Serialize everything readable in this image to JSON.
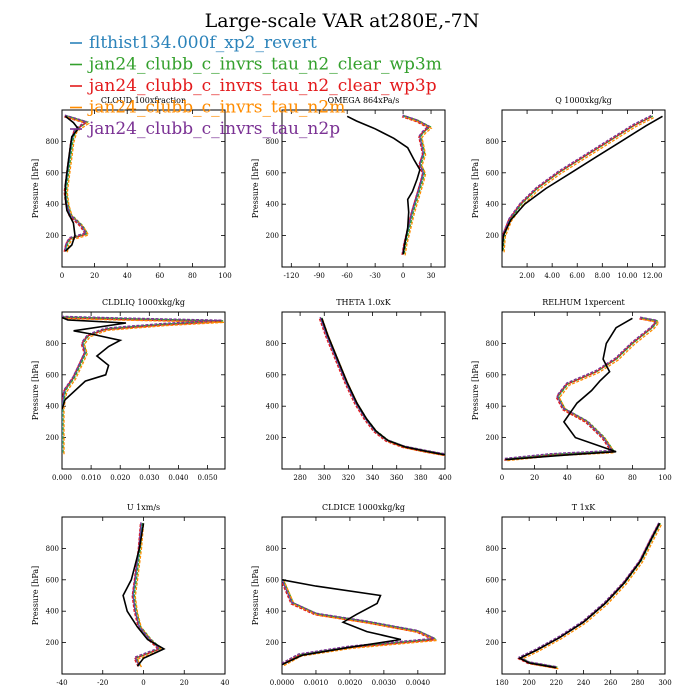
{
  "title": "Large-scale VAR at280E,-7N",
  "legend": [
    {
      "name": "flthist134.000f_xp2_revert",
      "color": "#2b83ba"
    },
    {
      "name": "jan24_clubb_c_invrs_tau_n2_clear_wp3m",
      "color": "#33a02c"
    },
    {
      "name": "jan24_clubb_c_invrs_tau_n2_clear_wp3p",
      "color": "#e31a1c"
    },
    {
      "name": "jan24_clubb_c_invrs_tau_n2m",
      "color": "#ff8c00"
    },
    {
      "name": "jan24_clubb_c_invrs_tau_n2p",
      "color": "#7b3294"
    }
  ],
  "control_color": "#000000",
  "chart_data": [
    {
      "type": "line",
      "title": "CLOUD 100xfraction",
      "ylabel": "Pressure [hPa]",
      "xlim": [
        0,
        100
      ],
      "ylim": [
        1000,
        0
      ],
      "y_inverted": true,
      "xticks": [
        "0",
        "20",
        "40",
        "60",
        "80",
        "100"
      ],
      "xtick_values": [
        0,
        20,
        40,
        60,
        80,
        100
      ],
      "yticks": [
        "200",
        "400",
        "600",
        "800"
      ],
      "ytick_values": [
        200,
        400,
        600,
        800
      ],
      "series": [
        {
          "role": "ensemble",
          "x": [
            2,
            3,
            5,
            15,
            12,
            5,
            3,
            2,
            3,
            4,
            5,
            6,
            8,
            15,
            2
          ],
          "y": [
            100,
            150,
            180,
            210,
            260,
            330,
            400,
            480,
            560,
            640,
            720,
            800,
            870,
            920,
            960
          ]
        },
        {
          "role": "control",
          "x": [
            2,
            6,
            8,
            7,
            3,
            2,
            2,
            3,
            4,
            5,
            6,
            10,
            7,
            2
          ],
          "y": [
            100,
            140,
            200,
            280,
            360,
            440,
            520,
            600,
            680,
            760,
            830,
            880,
            920,
            960
          ]
        }
      ]
    },
    {
      "type": "line",
      "title": "OMEGA 864xPa/s",
      "ylabel": "Pressure [hPa]",
      "xlim": [
        -130,
        45
      ],
      "ylim": [
        1000,
        0
      ],
      "y_inverted": true,
      "xticks": [
        "-120",
        "-90",
        "-60",
        "-30",
        "0",
        "30"
      ],
      "xtick_values": [
        -120,
        -90,
        -60,
        -30,
        0,
        30
      ],
      "yticks": [
        "200",
        "400",
        "600",
        "800"
      ],
      "ytick_values": [
        200,
        400,
        600,
        800
      ],
      "series": [
        {
          "role": "ensemble",
          "x": [
            0,
            2,
            6,
            10,
            15,
            20,
            22,
            18,
            22,
            20,
            18,
            22,
            28,
            15,
            0
          ],
          "y": [
            80,
            150,
            250,
            350,
            450,
            550,
            600,
            650,
            720,
            780,
            830,
            860,
            890,
            930,
            960
          ]
        },
        {
          "role": "control",
          "x": [
            0,
            2,
            5,
            6,
            5,
            10,
            15,
            18,
            12,
            5,
            -10,
            -30,
            -50,
            -60
          ],
          "y": [
            80,
            150,
            250,
            350,
            430,
            480,
            560,
            620,
            680,
            760,
            820,
            880,
            930,
            960
          ]
        }
      ]
    },
    {
      "type": "line",
      "title": "Q 1000xkg/kg",
      "ylabel": "Pressure [hPa]",
      "xlim": [
        0,
        13
      ],
      "ylim": [
        1000,
        0
      ],
      "y_inverted": true,
      "xticks": [
        "2.00",
        "4.00",
        "6.00",
        "8.00",
        "10.00",
        "12.00"
      ],
      "xtick_values": [
        2,
        4,
        6,
        8,
        10,
        12
      ],
      "yticks": [
        "200",
        "400",
        "600",
        "800"
      ],
      "ytick_values": [
        200,
        400,
        600,
        800
      ],
      "series": [
        {
          "role": "ensemble",
          "x": [
            0.01,
            0.1,
            0.6,
            1.5,
            2.8,
            4.5,
            6.5,
            8.5,
            10.5,
            12.0
          ],
          "y": [
            100,
            200,
            300,
            400,
            500,
            600,
            700,
            800,
            900,
            960
          ]
        },
        {
          "role": "control",
          "x": [
            0.01,
            0.1,
            0.7,
            1.8,
            3.5,
            5.5,
            7.5,
            9.5,
            11.5,
            12.8
          ],
          "y": [
            100,
            200,
            300,
            400,
            500,
            600,
            700,
            800,
            900,
            960
          ]
        }
      ]
    },
    {
      "type": "line",
      "title": "CLDLIQ 1000xkg/kg",
      "ylabel": "Pressure [hPa]",
      "xlim": [
        0,
        0.056
      ],
      "ylim": [
        1000,
        0
      ],
      "y_inverted": true,
      "xticks": [
        "0.000",
        "0.010",
        "0.020",
        "0.030",
        "0.040",
        "0.050"
      ],
      "xtick_values": [
        0,
        0.01,
        0.02,
        0.03,
        0.04,
        0.05
      ],
      "yticks": [
        "200",
        "400",
        "600",
        "800"
      ],
      "ytick_values": [
        200,
        400,
        600,
        800
      ],
      "series": [
        {
          "role": "ensemble",
          "x": [
            0,
            0,
            0.001,
            0.004,
            0.006,
            0.008,
            0.007,
            0.009,
            0.015,
            0.035,
            0.055,
            0.02,
            0
          ],
          "y": [
            100,
            400,
            500,
            580,
            660,
            740,
            800,
            850,
            890,
            920,
            940,
            955,
            965
          ]
        },
        {
          "role": "control",
          "x": [
            0,
            0.001,
            0.008,
            0.015,
            0.016,
            0.012,
            0.016,
            0.02,
            0.01,
            0.004,
            0.022,
            0.002,
            0
          ],
          "y": [
            380,
            440,
            560,
            600,
            660,
            720,
            780,
            820,
            860,
            880,
            930,
            950,
            965
          ]
        }
      ]
    },
    {
      "type": "line",
      "title": "THETA 1.0xK",
      "ylabel": "",
      "xlim": [
        265,
        400
      ],
      "ylim": [
        1000,
        0
      ],
      "y_inverted": true,
      "xticks": [
        "280",
        "300",
        "320",
        "340",
        "360",
        "380",
        "400"
      ],
      "xtick_values": [
        280,
        300,
        320,
        340,
        360,
        380,
        400
      ],
      "yticks": [
        "200",
        "400",
        "600",
        "800"
      ],
      "ytick_values": [
        200,
        400,
        600,
        800
      ],
      "series": [
        {
          "role": "ensemble",
          "x": [
            297,
            302,
            310,
            318,
            326,
            334,
            342,
            352,
            366,
            385,
            400
          ],
          "y": [
            960,
            850,
            700,
            550,
            420,
            320,
            240,
            180,
            140,
            110,
            90
          ]
        },
        {
          "role": "control",
          "x": [
            298,
            303,
            311,
            319,
            327,
            335,
            343,
            353,
            367,
            386,
            400
          ],
          "y": [
            960,
            850,
            700,
            550,
            420,
            320,
            240,
            180,
            140,
            110,
            90
          ]
        }
      ]
    },
    {
      "type": "line",
      "title": "RELHUM 1xpercent",
      "ylabel": "Pressure [hPa]",
      "xlim": [
        0,
        100
      ],
      "ylim": [
        1000,
        0
      ],
      "y_inverted": true,
      "xticks": [
        "0",
        "20",
        "40",
        "60",
        "80",
        "100"
      ],
      "xtick_values": [
        0,
        20,
        40,
        60,
        80,
        100
      ],
      "yticks": [
        "200",
        "400",
        "600",
        "800"
      ],
      "ytick_values": [
        200,
        400,
        600,
        800
      ],
      "series": [
        {
          "role": "ensemble",
          "x": [
            2,
            30,
            68,
            62,
            52,
            38,
            34,
            40,
            58,
            70,
            80,
            92,
            95,
            85
          ],
          "y": [
            60,
            90,
            110,
            200,
            300,
            380,
            460,
            540,
            620,
            700,
            800,
            900,
            940,
            960
          ]
        },
        {
          "role": "control",
          "x": [
            2,
            40,
            70,
            45,
            38,
            46,
            55,
            60,
            66,
            62,
            64,
            70,
            80
          ],
          "y": [
            60,
            90,
            110,
            200,
            300,
            420,
            500,
            560,
            620,
            700,
            800,
            900,
            960
          ]
        }
      ]
    },
    {
      "type": "line",
      "title": "U 1xm/s",
      "ylabel": "Pressure [hPa]",
      "xlim": [
        -40,
        40
      ],
      "ylim": [
        1000,
        0
      ],
      "y_inverted": true,
      "xticks": [
        "-40",
        "-20",
        "0",
        "20",
        "40"
      ],
      "xtick_values": [
        -40,
        -20,
        0,
        20,
        40
      ],
      "yticks": [
        "200",
        "400",
        "600",
        "800"
      ],
      "ytick_values": [
        200,
        400,
        600,
        800
      ],
      "series": [
        {
          "role": "ensemble",
          "x": [
            -2,
            -4,
            2,
            8,
            3,
            -2,
            -4,
            -5,
            -4,
            -3,
            -2,
            -1
          ],
          "y": [
            50,
            100,
            130,
            160,
            220,
            300,
            400,
            500,
            600,
            700,
            800,
            960
          ]
        },
        {
          "role": "control",
          "x": [
            -3,
            0,
            5,
            10,
            2,
            -3,
            -8,
            -10,
            -6,
            -4,
            -2,
            0
          ],
          "y": [
            50,
            100,
            130,
            160,
            220,
            300,
            400,
            500,
            600,
            700,
            800,
            960
          ]
        }
      ]
    },
    {
      "type": "line",
      "title": "CLDICE 1000xkg/kg",
      "ylabel": "Pressure [hPa]",
      "xlim": [
        0,
        0.0048
      ],
      "ylim": [
        1000,
        0
      ],
      "y_inverted": true,
      "xticks": [
        "0.0000",
        "0.0010",
        "0.0020",
        "0.0030",
        "0.0040"
      ],
      "xtick_values": [
        0,
        0.001,
        0.002,
        0.003,
        0.004
      ],
      "yticks": [
        "200",
        "400",
        "600",
        "800"
      ],
      "ytick_values": [
        200,
        400,
        600,
        800
      ],
      "series": [
        {
          "role": "ensemble",
          "x": [
            0,
            0.0005,
            0.002,
            0.0045,
            0.004,
            0.0025,
            0.001,
            0.0003,
            0.0001,
            0
          ],
          "y": [
            60,
            120,
            170,
            220,
            270,
            330,
            380,
            450,
            550,
            600
          ]
        },
        {
          "role": "control",
          "x": [
            0,
            0.0006,
            0.002,
            0.0035,
            0.0025,
            0.0018,
            0.0022,
            0.0028,
            0.0029,
            0.001,
            0
          ],
          "y": [
            60,
            120,
            170,
            220,
            270,
            330,
            380,
            450,
            500,
            560,
            600
          ]
        }
      ]
    },
    {
      "type": "line",
      "title": "T 1xK",
      "ylabel": "",
      "xlim": [
        180,
        300
      ],
      "ylim": [
        1000,
        0
      ],
      "y_inverted": true,
      "xticks": [
        "180",
        "200",
        "220",
        "240",
        "260",
        "280",
        "300"
      ],
      "xtick_values": [
        180,
        200,
        220,
        240,
        260,
        280,
        300
      ],
      "yticks": [
        "200",
        "400",
        "600",
        "800"
      ],
      "ytick_values": [
        200,
        400,
        600,
        800
      ],
      "series": [
        {
          "role": "ensemble",
          "x": [
            220,
            200,
            193,
            205,
            222,
            240,
            256,
            270,
            282,
            290,
            296
          ],
          "y": [
            40,
            70,
            100,
            150,
            230,
            330,
            450,
            580,
            720,
            860,
            960
          ]
        },
        {
          "role": "control",
          "x": [
            220,
            200,
            193,
            205,
            222,
            240,
            256,
            270,
            282,
            290,
            296
          ],
          "y": [
            40,
            70,
            100,
            150,
            230,
            330,
            450,
            580,
            720,
            860,
            960
          ]
        }
      ]
    }
  ]
}
